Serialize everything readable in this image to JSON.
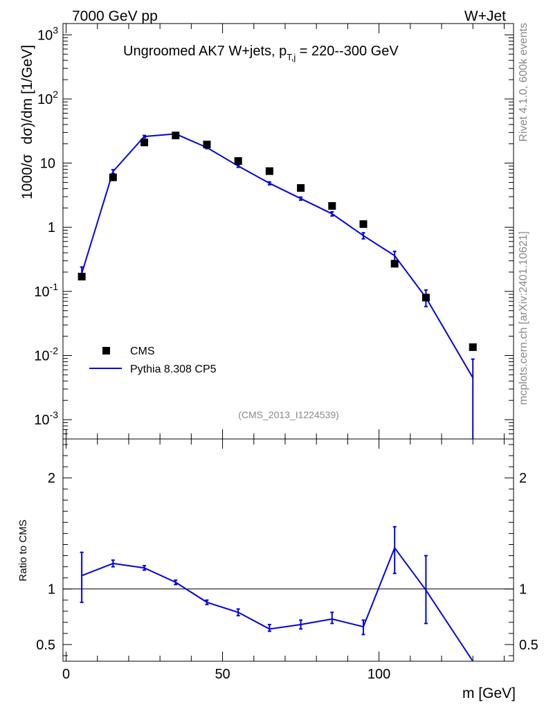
{
  "header": {
    "left": "7000 GeV pp",
    "right": "W+Jet"
  },
  "side": {
    "rivet": "Rivet 4.1.0,  600k events",
    "mcplots": "mcplots.cern.ch [arXiv:2401.10621]"
  },
  "chart_data": [
    {
      "type": "scatter",
      "panel": "main",
      "title_main": "Ungroomed AK7 W+jets, p",
      "title_sub": "T,j",
      "title_range": " = 220--300 GeV",
      "ylabel_a": "1000/σ",
      "ylabel_b": "dσ)/dm [1/GeV]",
      "yscale": "log",
      "ylim": [
        0.0005,
        1500
      ],
      "xlim": [
        -1,
        143
      ],
      "ytick_base": "10",
      "ytick_exps": [
        "-3",
        "-2",
        "-1",
        "2",
        "3"
      ],
      "ytick_plain": [
        "1",
        "10"
      ],
      "ref_id": "(CMS_2013_I1224539)",
      "legend": {
        "position": "middle-left",
        "cms": "CMS",
        "mc": "Pythia 8.308 CP5"
      },
      "series": [
        {
          "name": "CMS",
          "style": "markers",
          "color": "#000000",
          "x": [
            5,
            15,
            25,
            35,
            45,
            55,
            65,
            75,
            85,
            95,
            105,
            115,
            130
          ],
          "y": [
            0.17,
            6.0,
            21.0,
            27.0,
            19.5,
            10.8,
            7.5,
            4.1,
            2.15,
            1.12,
            0.27,
            0.08,
            0.0135
          ]
        },
        {
          "name": "Pythia 8.308 CP5",
          "style": "line",
          "color": "#0000e6",
          "x": [
            5,
            15,
            25,
            35,
            45,
            55,
            65,
            75,
            85,
            95,
            105,
            115,
            130
          ],
          "y": [
            0.19,
            7.4,
            26.0,
            28.5,
            17.5,
            9.0,
            4.85,
            2.8,
            1.62,
            0.74,
            0.36,
            0.08,
            0.0045
          ],
          "err_lo": [
            0.16,
            6.9,
            25.0,
            27.5,
            16.8,
            8.6,
            4.6,
            2.65,
            1.5,
            0.66,
            0.3,
            0.058,
            0.0001
          ],
          "err_hi": [
            0.24,
            7.9,
            27.0,
            29.5,
            18.2,
            9.4,
            5.1,
            2.95,
            1.74,
            0.82,
            0.42,
            0.105,
            0.0088
          ]
        }
      ]
    },
    {
      "type": "line",
      "panel": "ratio",
      "ylabel": "Ratio to CMS",
      "xlabel": "m [GeV]",
      "xlim": [
        -1,
        143
      ],
      "ylim": [
        0.35,
        2.35
      ],
      "yticks": [
        "0.5",
        "1",
        "2"
      ],
      "xticks": [
        "0",
        "50",
        "100"
      ],
      "reference_line": 1,
      "series": [
        {
          "name": "Pythia 8.308 CP5 / CMS",
          "color": "#0000e6",
          "x": [
            5,
            15,
            25,
            35,
            45,
            55,
            65,
            75,
            85,
            95,
            105,
            115,
            130
          ],
          "y": [
            1.12,
            1.23,
            1.19,
            1.06,
            0.88,
            0.79,
            0.64,
            0.68,
            0.73,
            0.66,
            1.37,
            0.99,
            0.33
          ],
          "err_lo": [
            0.88,
            1.2,
            1.17,
            1.04,
            0.86,
            0.76,
            0.62,
            0.64,
            0.69,
            0.59,
            1.14,
            0.69,
            0.33
          ],
          "err_hi": [
            1.33,
            1.26,
            1.21,
            1.08,
            0.9,
            0.82,
            0.68,
            0.72,
            0.79,
            0.72,
            1.56,
            1.3,
            0.33
          ]
        }
      ]
    }
  ]
}
